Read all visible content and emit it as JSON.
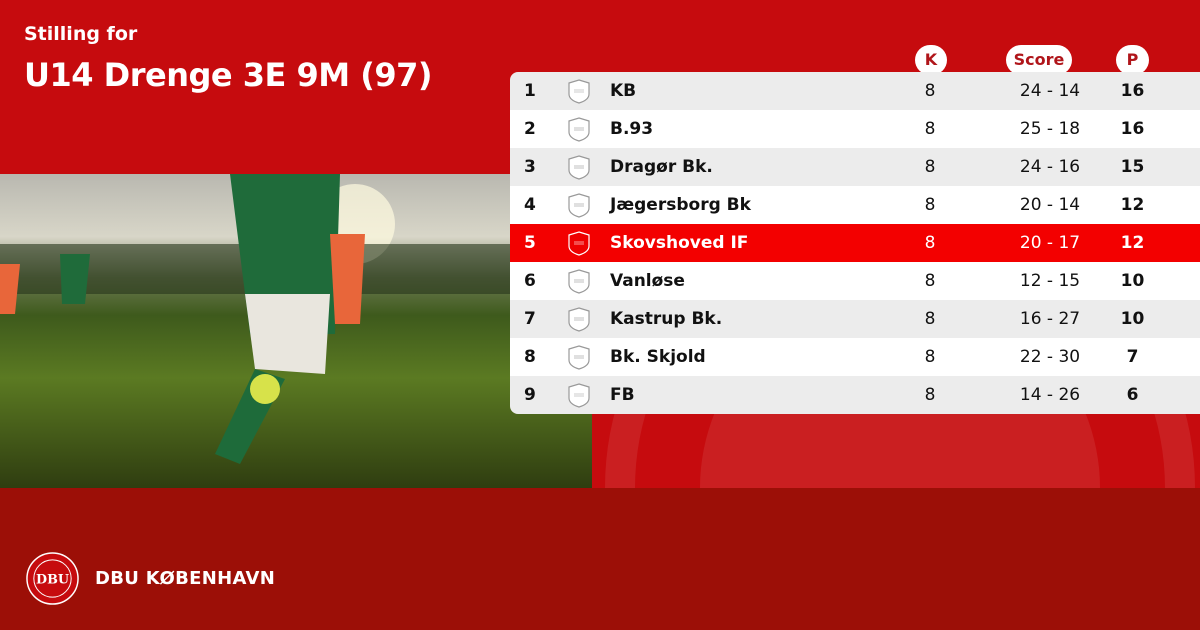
{
  "header": {
    "subtitle": "Stilling for",
    "title": "U14 Drenge 3E 9M (97)"
  },
  "columns": {
    "played": "K",
    "score": "Score",
    "points": "P"
  },
  "highlight_color": "#f30000",
  "rows": [
    {
      "pos": "1",
      "team": "KB",
      "played": "8",
      "score": "24 - 14",
      "points": "16"
    },
    {
      "pos": "2",
      "team": "B.93",
      "played": "8",
      "score": "25 - 18",
      "points": "16"
    },
    {
      "pos": "3",
      "team": "Dragør Bk.",
      "played": "8",
      "score": "24 - 16",
      "points": "15"
    },
    {
      "pos": "4",
      "team": "Jægersborg Bk",
      "played": "8",
      "score": "20 - 14",
      "points": "12"
    },
    {
      "pos": "5",
      "team": "Skovshoved IF",
      "played": "8",
      "score": "20 - 17",
      "points": "12",
      "highlighted": true
    },
    {
      "pos": "6",
      "team": "Vanløse",
      "played": "8",
      "score": "12 - 15",
      "points": "10"
    },
    {
      "pos": "7",
      "team": "Kastrup Bk.",
      "played": "8",
      "score": "16 - 27",
      "points": "10"
    },
    {
      "pos": "8",
      "team": "Bk. Skjold",
      "played": "8",
      "score": "22 - 30",
      "points": "7"
    },
    {
      "pos": "9",
      "team": "FB",
      "played": "8",
      "score": "14 - 26",
      "points": "6"
    }
  ],
  "footer": {
    "brand": "DBU KØBENHAVN",
    "logo_text": "DBU · DANSK BOLDSPIL-UNION 1889"
  }
}
